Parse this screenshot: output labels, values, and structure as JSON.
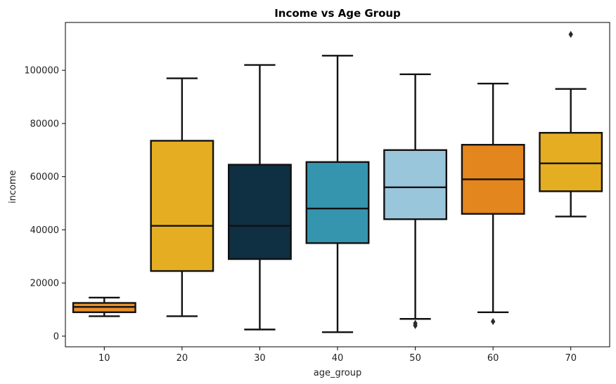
{
  "chart_data": {
    "type": "box",
    "title": "Income vs Age Group",
    "xlabel": "age_group",
    "ylabel": "income",
    "ylim": [
      -4000,
      118000
    ],
    "yticks": [
      0,
      20000,
      40000,
      60000,
      80000,
      100000
    ],
    "ytick_labels": [
      "0",
      "20000",
      "40000",
      "60000",
      "80000",
      "100000"
    ],
    "grid": false,
    "categories": [
      "10",
      "20",
      "30",
      "40",
      "50",
      "60",
      "70"
    ],
    "boxes": [
      {
        "category": "10",
        "whisker_low": 7500,
        "q1": 9000,
        "median": 11000,
        "q3": 12500,
        "whisker_high": 14500,
        "outliers": [],
        "color": "#E8902A"
      },
      {
        "category": "20",
        "whisker_low": 7500,
        "q1": 24500,
        "median": 41500,
        "q3": 73500,
        "whisker_high": 97000,
        "outliers": [],
        "color": "#E5AE22"
      },
      {
        "category": "30",
        "whisker_low": 2500,
        "q1": 29000,
        "median": 41500,
        "q3": 64500,
        "whisker_high": 102000,
        "outliers": [],
        "color": "#0F2F42"
      },
      {
        "category": "40",
        "whisker_low": 1500,
        "q1": 35000,
        "median": 48000,
        "q3": 65500,
        "whisker_high": 105500,
        "outliers": [],
        "color": "#3594AE"
      },
      {
        "category": "50",
        "whisker_low": 6500,
        "q1": 44000,
        "median": 56000,
        "q3": 70000,
        "whisker_high": 98500,
        "outliers": [
          4000,
          4800
        ],
        "color": "#9AC6DC"
      },
      {
        "category": "60",
        "whisker_low": 9000,
        "q1": 46000,
        "median": 59000,
        "q3": 72000,
        "whisker_high": 95000,
        "outliers": [
          5500
        ],
        "color": "#E3861E"
      },
      {
        "category": "70",
        "whisker_low": 45000,
        "q1": 54500,
        "median": 65000,
        "q3": 76500,
        "whisker_high": 93000,
        "outliers": [
          113500
        ],
        "color": "#E5AE22"
      }
    ]
  }
}
